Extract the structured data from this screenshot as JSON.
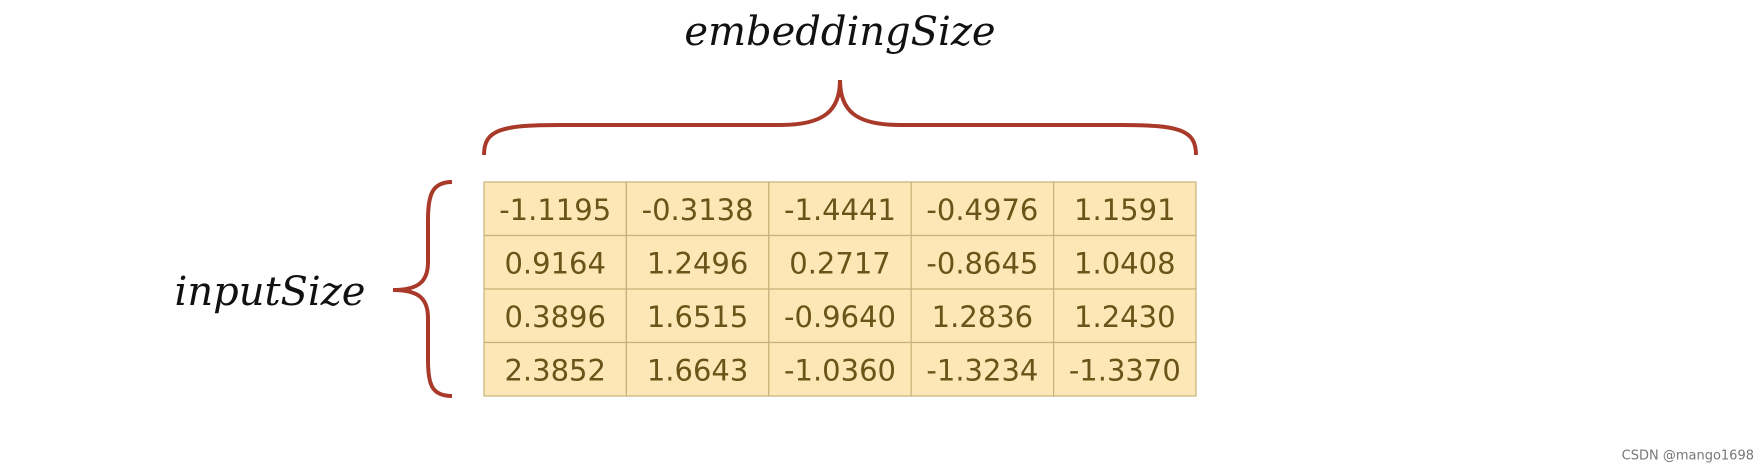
{
  "labels": {
    "top": "embeddingSize",
    "left": "inputSize"
  },
  "table": {
    "rows": [
      [
        "-1.1195",
        "-0.3138",
        "-1.4441",
        "-0.4976",
        "1.1591"
      ],
      [
        "0.9164",
        "1.2496",
        "0.2717",
        "-0.8645",
        "1.0408"
      ],
      [
        "0.3896",
        "1.6515",
        "-0.9640",
        "1.2836",
        "1.2430"
      ],
      [
        "2.3852",
        "1.6643",
        "-1.0360",
        "-1.3234",
        "-1.3370"
      ]
    ]
  },
  "watermark": "CSDN @mango1698"
}
